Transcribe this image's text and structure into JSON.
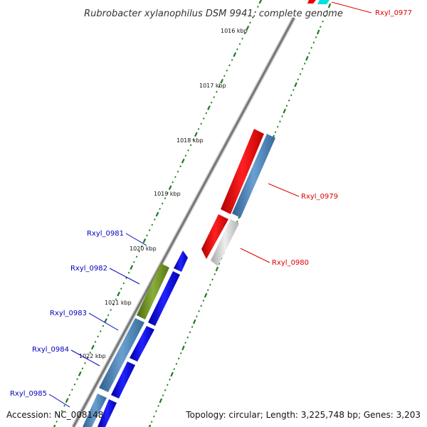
{
  "title": "Rubrobacter xylanophilus DSM 9941, complete genome",
  "footer": {
    "accession": "Accession: NC_008148",
    "topology": "Topology: circular; Length: 3,225,748 bp; Genes: 3,203"
  },
  "ruler": [
    {
      "label": "1016 kbp",
      "kb": 1016
    },
    {
      "label": "1017 kbp",
      "kb": 1017
    },
    {
      "label": "1018 kbp",
      "kb": 1018
    },
    {
      "label": "1019 kbp",
      "kb": 1019
    },
    {
      "label": "1020 kbp",
      "kb": 1020
    },
    {
      "label": "1021 kbp",
      "kb": 1021
    },
    {
      "label": "1022 kbp",
      "kb": 1022
    }
  ],
  "genes": [
    {
      "id": "Rxyl_0977",
      "strand": "forward",
      "color": "#dd0000"
    },
    {
      "id": "Rxyl_0979",
      "strand": "forward",
      "color": "#dd0000"
    },
    {
      "id": "Rxyl_0980",
      "strand": "forward",
      "color": "#dd0000"
    },
    {
      "id": "Rxyl_0981",
      "strand": "reverse",
      "color": "#0000bb"
    },
    {
      "id": "Rxyl_0982",
      "strand": "reverse",
      "color": "#0000bb"
    },
    {
      "id": "Rxyl_0983",
      "strand": "reverse",
      "color": "#0000bb"
    },
    {
      "id": "Rxyl_0984",
      "strand": "reverse",
      "color": "#0000bb"
    },
    {
      "id": "Rxyl_0985",
      "strand": "reverse",
      "color": "#0000bb"
    }
  ],
  "colors": {
    "backbone": "#888888",
    "tick_green": "#1f7a1f",
    "cds_blue": "#1010ee",
    "cds_red": "#ee0000",
    "cds_steel": "#4f86b8",
    "cds_olive": "#6b8e23",
    "cds_grey": "#c8c8c8",
    "cds_cyan": "#00e0e0"
  }
}
